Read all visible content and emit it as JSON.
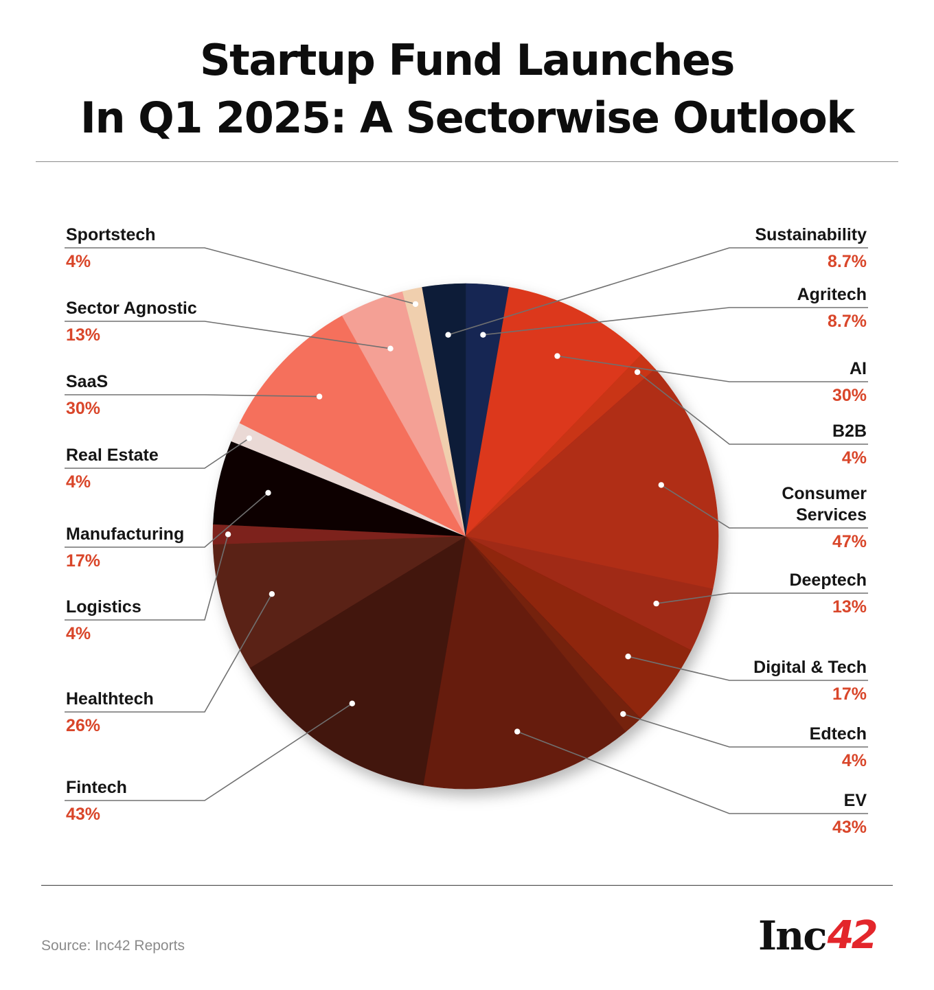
{
  "header": {
    "title_line1": "Startup Fund Launches",
    "title_line2": "In Q1 2025: A Sectorwise Outlook"
  },
  "footer": {
    "source": "Source: Inc42 Reports",
    "logo_text": "Inc",
    "logo_number": "42"
  },
  "colors": {
    "label_value": "#d9462a",
    "leader_line": "#707070",
    "logo_accent": "#e3262b"
  },
  "chart_data": {
    "type": "pie",
    "title": "Startup Fund Launches In Q1 2025: A Sectorwise Outlook",
    "slices": [
      {
        "name": "Agritech",
        "label": "8.7%",
        "value": 8.7,
        "color": "#172752"
      },
      {
        "name": "AI",
        "label": "30%",
        "value": 30,
        "color": "#dc391a"
      },
      {
        "name": "B2B",
        "label": "4%",
        "value": 4,
        "color": "#c93418"
      },
      {
        "name": "Consumer Services",
        "label": "47%",
        "value": 47,
        "color": "#b02d15"
      },
      {
        "name": "Deeptech",
        "label": "13%",
        "value": 13,
        "color": "#a02a14"
      },
      {
        "name": "Digital & Tech",
        "label": "17%",
        "value": 17,
        "color": "#8f2510"
      },
      {
        "name": "Edtech",
        "label": "4%",
        "value": 4,
        "color": "#74200f"
      },
      {
        "name": "EV",
        "label": "43%",
        "value": 43,
        "color": "#661c0e"
      },
      {
        "name": "Fintech",
        "label": "43%",
        "value": 43,
        "color": "#43130b"
      },
      {
        "name": "Healthtech",
        "label": "26%",
        "value": 26,
        "color": "#5a2216"
      },
      {
        "name": "Logistics",
        "label": "4%",
        "value": 4,
        "color": "#7d231b"
      },
      {
        "name": "Manufacturing",
        "label": "17%",
        "value": 17,
        "color": "#0b0203"
      },
      {
        "name": "Real Estate",
        "label": "4%",
        "value": 4,
        "color": "#ead9d5"
      },
      {
        "name": "SaaS",
        "label": "30%",
        "value": 30,
        "color": "#f5705c"
      },
      {
        "name": "Sector Agnostic",
        "label": "13%",
        "value": 13,
        "color": "#f4a095"
      },
      {
        "name": "Sportstech",
        "label": "4%",
        "value": 4,
        "color": "#f0cfae"
      },
      {
        "name": "Sustainability",
        "label": "8.7%",
        "value": 8.7,
        "color": "#111d38"
      }
    ]
  }
}
